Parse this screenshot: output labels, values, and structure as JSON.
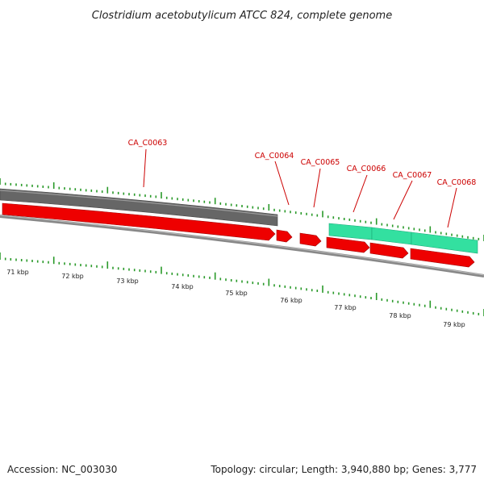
{
  "title": "Clostridium acetobutylicum ATCC 824, complete genome",
  "footer": {
    "accession": "Accession: NC_003030",
    "summary": "Topology: circular; Length: 3,940,880 bp; Genes: 3,777"
  },
  "colors": {
    "gene_label": "#cc0000",
    "gene_red": "#ee0000",
    "gene_green": "#33e0a0",
    "gene_gray": "#666666",
    "backbone": "#888888",
    "tick": "#2a9a2a"
  },
  "gene_labels": [
    "CA_C0063",
    "CA_C0064",
    "CA_C0065",
    "CA_C0066",
    "CA_C0067",
    "CA_C0068"
  ],
  "kbp_labels": [
    "71 kbp",
    "72 kbp",
    "73 kbp",
    "74 kbp",
    "75 kbp",
    "76 kbp",
    "77 kbp",
    "78 kbp",
    "79 kbp"
  ],
  "tracks": {
    "gray_feature": "gray",
    "red_genes": "red",
    "green_genes": "green"
  }
}
